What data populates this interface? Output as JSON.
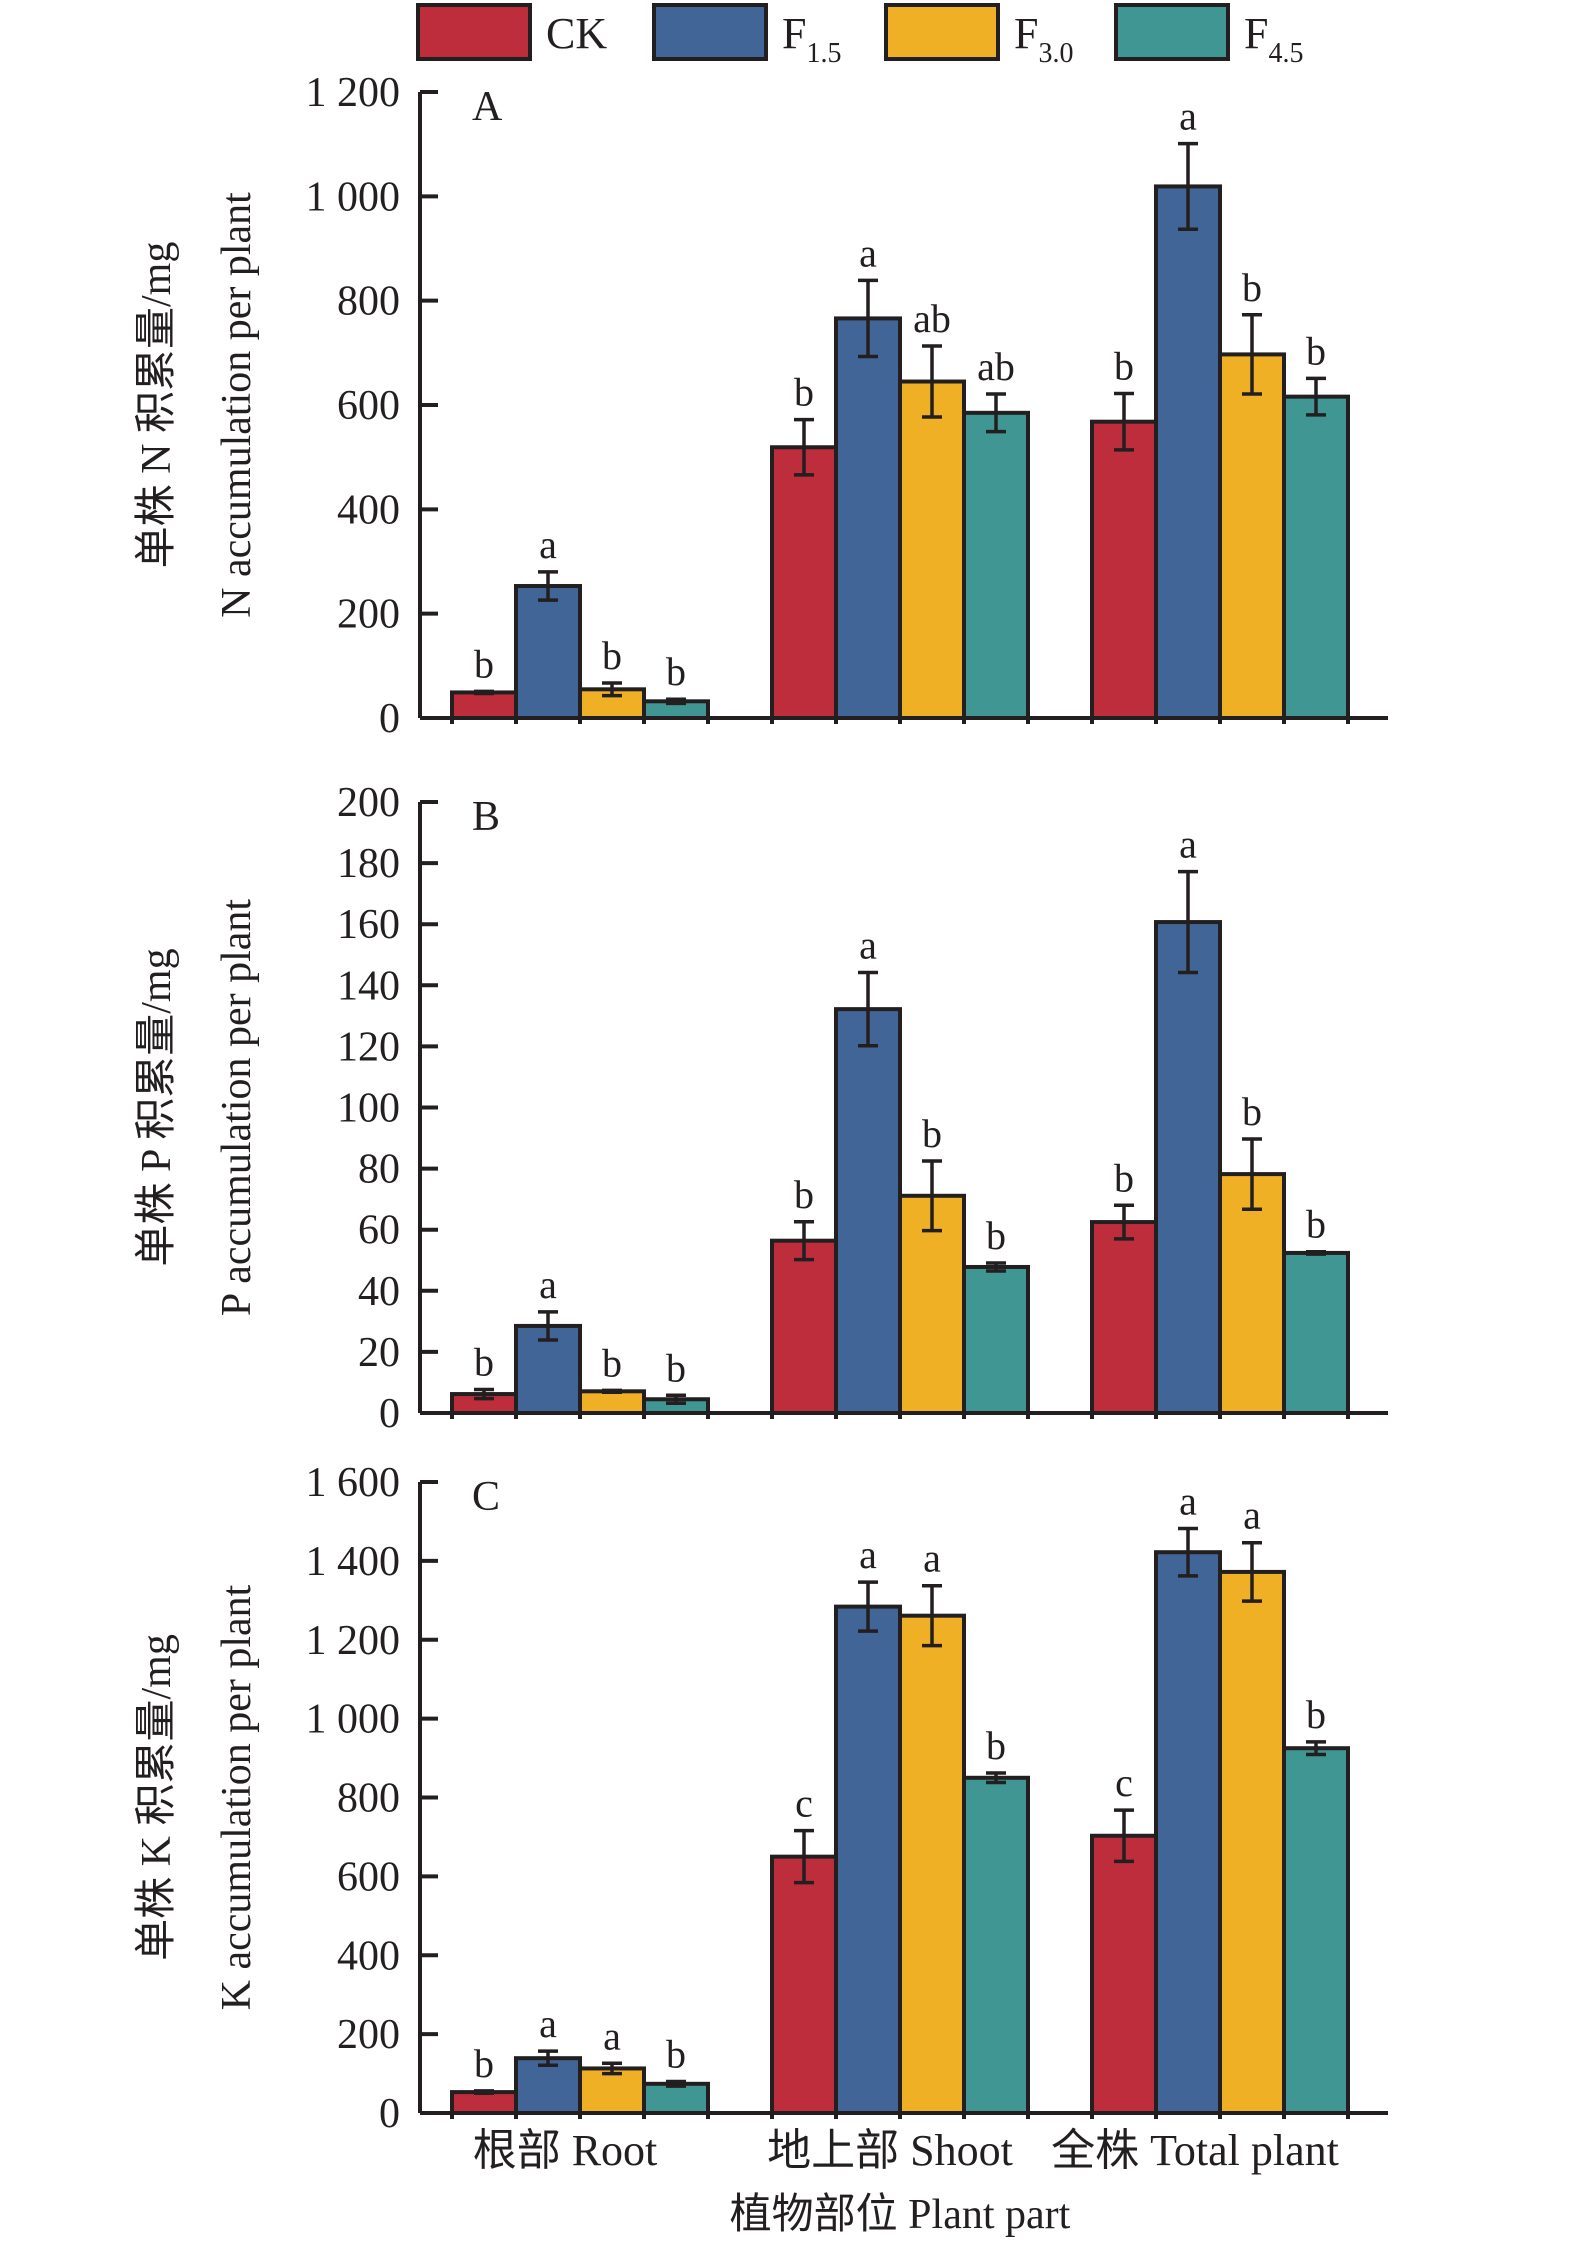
{
  "legend": {
    "items": [
      {
        "name": "CK",
        "main": "CK",
        "sub": "",
        "color": "#be2d3b"
      },
      {
        "name": "F1.5",
        "main": "F",
        "sub": "1.5",
        "color": "#426597"
      },
      {
        "name": "F3.0",
        "main": "F",
        "sub": "3.0",
        "color": "#efb025"
      },
      {
        "name": "F4.5",
        "main": "F",
        "sub": "4.5",
        "color": "#3f9693"
      }
    ]
  },
  "x_axis": {
    "categories": [
      "根部 Root",
      "地上部 Shoot",
      "全株 Total plant"
    ],
    "title": "植物部位 Plant part"
  },
  "chart_data": [
    {
      "type": "bar",
      "panel": "A",
      "ylabel_cn": "单株 N 积累量/mg",
      "ylabel_en": "N accumulation per plant",
      "ylim": [
        0,
        1200
      ],
      "yticks": [
        0,
        200,
        400,
        600,
        800,
        1000,
        1200
      ],
      "ytick_labels": [
        "0",
        "200",
        "400",
        "600",
        "800",
        "1 000",
        "1 200"
      ],
      "categories": [
        "根部 Root",
        "地上部 Shoot",
        "全株 Total plant"
      ],
      "series": [
        {
          "name": "CK",
          "values": [
            49,
            519,
            568
          ],
          "errors": [
            2,
            53,
            54
          ],
          "letters": [
            "b",
            "b",
            "b"
          ]
        },
        {
          "name": "F1.5",
          "values": [
            253,
            766,
            1019
          ],
          "errors": [
            27,
            73,
            82
          ],
          "letters": [
            "a",
            "a",
            "a"
          ]
        },
        {
          "name": "F3.0",
          "values": [
            55,
            645,
            697
          ],
          "errors": [
            12,
            68,
            76
          ],
          "letters": [
            "b",
            "ab",
            "b"
          ]
        },
        {
          "name": "F4.5",
          "values": [
            32,
            585,
            616
          ],
          "errors": [
            4,
            36,
            35
          ],
          "letters": [
            "b",
            "ab",
            "b"
          ]
        }
      ]
    },
    {
      "type": "bar",
      "panel": "B",
      "ylabel_cn": "单株 P 积累量/mg",
      "ylabel_en": "P accumulation per plant",
      "ylim": [
        0,
        200
      ],
      "yticks": [
        0,
        20,
        40,
        60,
        80,
        100,
        120,
        140,
        160,
        180,
        200
      ],
      "ytick_labels": [
        "0",
        "20",
        "40",
        "60",
        "80",
        "100",
        "120",
        "140",
        "160",
        "180",
        "200"
      ],
      "categories": [
        "根部 Root",
        "地上部 Shoot",
        "全株 Total plant"
      ],
      "series": [
        {
          "name": "CK",
          "values": [
            6.2,
            56.4,
            62.5
          ],
          "errors": [
            1.5,
            6.2,
            5.5
          ],
          "letters": [
            "b",
            "b",
            "b"
          ]
        },
        {
          "name": "F1.5",
          "values": [
            28.5,
            132.2,
            160.7
          ],
          "errors": [
            4.6,
            12.0,
            16.5
          ],
          "letters": [
            "a",
            "a",
            "a"
          ]
        },
        {
          "name": "F3.0",
          "values": [
            7.1,
            71.1,
            78.2
          ],
          "errors": [
            0.3,
            11.4,
            11.5
          ],
          "letters": [
            "b",
            "b",
            "b"
          ]
        },
        {
          "name": "F4.5",
          "values": [
            4.5,
            47.8,
            52.4
          ],
          "errors": [
            1.3,
            1.3,
            0.4
          ],
          "letters": [
            "b",
            "b",
            "b"
          ]
        }
      ]
    },
    {
      "type": "bar",
      "panel": "C",
      "ylabel_cn": "单株 K 积累量/mg",
      "ylabel_en": "K accumulation per plant",
      "ylim": [
        0,
        1600
      ],
      "yticks": [
        0,
        200,
        400,
        600,
        800,
        1000,
        1200,
        1400,
        1600
      ],
      "ytick_labels": [
        "0",
        "200",
        "400",
        "600",
        "800",
        "1 000",
        "1 200",
        "1 400",
        "1 600"
      ],
      "categories": [
        "根部 Root",
        "地上部 Shoot",
        "全株 Total plant"
      ],
      "series": [
        {
          "name": "CK",
          "values": [
            53,
            650,
            703
          ],
          "errors": [
            3,
            66,
            65
          ],
          "letters": [
            "b",
            "c",
            "c"
          ]
        },
        {
          "name": "F1.5",
          "values": [
            139,
            1284,
            1422
          ],
          "errors": [
            18,
            62,
            60
          ],
          "letters": [
            "a",
            "a",
            "a"
          ]
        },
        {
          "name": "F3.0",
          "values": [
            113,
            1261,
            1372
          ],
          "errors": [
            13,
            76,
            74
          ],
          "letters": [
            "a",
            "a",
            "a"
          ]
        },
        {
          "name": "F4.5",
          "values": [
            74,
            850,
            925
          ],
          "errors": [
            6,
            12,
            16
          ],
          "letters": [
            "b",
            "b",
            "b"
          ]
        }
      ]
    }
  ]
}
